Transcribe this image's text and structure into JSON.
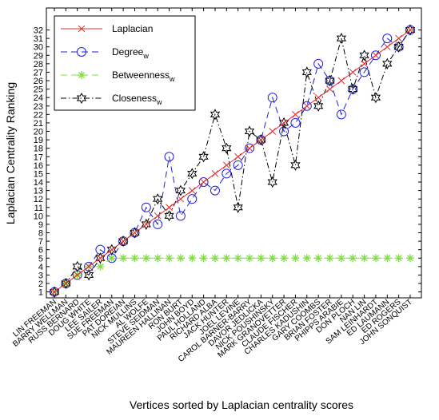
{
  "chart_data": {
    "type": "line",
    "xlabel": "Vertices sorted by Laplacian centrality scores",
    "ylabel": "Laplacian Centrality Ranking",
    "categories": [
      "LIN FREEMAN",
      "BARRY WELLMAN",
      "RUSS BERNARD",
      "DOUG WHITE",
      "LEE SAILER",
      "SUE FREEMAN",
      "PAT DOREIAN",
      "NICK MULLINS",
      "AL WOLFE",
      "STEVE SEIDMAN",
      "MAUREEN HALLINAN",
      "RON BURT",
      "JOHN BOYD",
      "PAUL HOLLAND",
      "RICHARD ALBA",
      "JACK HUNTER",
      "JOEL LEVINE",
      "CAROL BARNER-BARRY",
      "DAVOR JEDLICKA",
      "NICK POUSHINSKY",
      "MARK GRANOVETTER",
      "CLAUDE FISCHER",
      "CHARLES KADUSHIN",
      "GARY COOMBS",
      "BRIAN FOSTER",
      "PHIPPS ARABIE",
      "DON PLOCH",
      "NAN LIN",
      "SAM LEINHARDT",
      "ED LAUMANN",
      "ED ROGERS",
      "JOHN SONQUIST"
    ],
    "series": [
      {
        "name": "Laplacian",
        "color": "#e03030",
        "marker": "x",
        "dash": "solid",
        "values": [
          1,
          2,
          3,
          4,
          5,
          6,
          7,
          8,
          9,
          10,
          11,
          12,
          13,
          14,
          15,
          16,
          17,
          18,
          19,
          20,
          21,
          22,
          23,
          24,
          25,
          26,
          27,
          28,
          29,
          30,
          31,
          32
        ]
      },
      {
        "name": "Degree",
        "name_subscript": "w",
        "color": "#2020e0",
        "marker": "circle",
        "dash": "dashed",
        "values": [
          1,
          2,
          3,
          4,
          6,
          5,
          7,
          8,
          11,
          9,
          17,
          10,
          12,
          14,
          13,
          15,
          16,
          18,
          19,
          24,
          20,
          21,
          23,
          28,
          26,
          22,
          25,
          27,
          29,
          31,
          30,
          32
        ]
      },
      {
        "name": "Betweenness",
        "name_subscript": "w",
        "color": "#7ee040",
        "marker": "asterisk",
        "dash": "dashed",
        "values": [
          1,
          2,
          3,
          4,
          4,
          5,
          5,
          5,
          5,
          5,
          5,
          5,
          5,
          5,
          5,
          5,
          5,
          5,
          5,
          5,
          5,
          5,
          5,
          5,
          5,
          5,
          5,
          5,
          5,
          5,
          5,
          5
        ]
      },
      {
        "name": "Closeness",
        "name_subscript": "w",
        "color": "#000000",
        "marker": "hexagram",
        "dash": "dashdot",
        "values": [
          1,
          2,
          4,
          3,
          5,
          6,
          7,
          8,
          9,
          12,
          10,
          13,
          15,
          17,
          22,
          18,
          11,
          20,
          19,
          14,
          21,
          16,
          27,
          23,
          26,
          31,
          25,
          29,
          24,
          28,
          30,
          32
        ]
      }
    ],
    "ylim": [
      0.3,
      34.6
    ],
    "yticks": [
      1,
      2,
      3,
      4,
      5,
      6,
      7,
      8,
      9,
      10,
      11,
      12,
      13,
      14,
      15,
      16,
      17,
      18,
      19,
      20,
      21,
      22,
      23,
      24,
      25,
      26,
      27,
      28,
      29,
      30,
      31,
      32
    ],
    "legend": "upper left"
  }
}
